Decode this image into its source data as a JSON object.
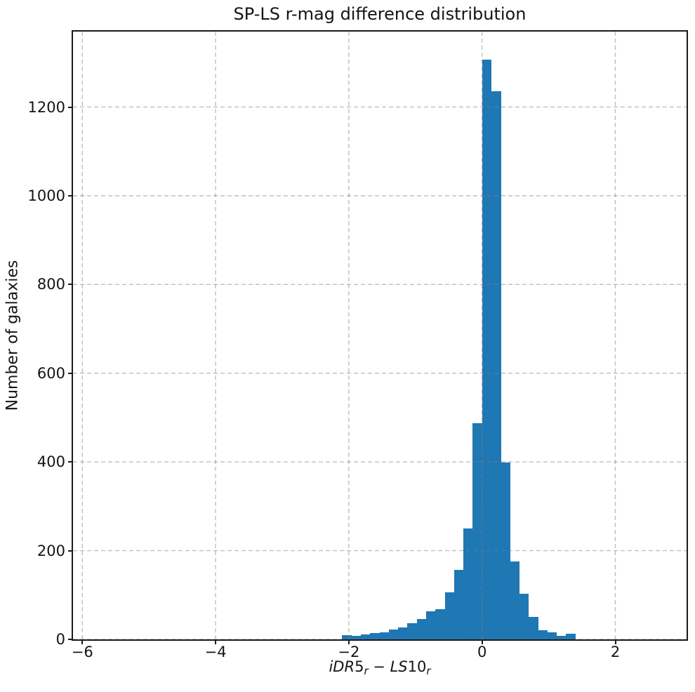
{
  "figure": {
    "background": "#ffffff",
    "frame_color": "#1a1a1a",
    "text_color": "#141414"
  },
  "chart_data": {
    "type": "bar",
    "subtype": "histogram",
    "title": "SP-LS r-mag difference distribution",
    "xlabel": "iDR5_r − LS10_r",
    "xlabel_parts": [
      {
        "text": "iDR",
        "italic": true,
        "sub": false
      },
      {
        "text": "5",
        "italic": false,
        "sub": false
      },
      {
        "text": "r",
        "italic": true,
        "sub": true
      },
      {
        "text": " − ",
        "italic": false,
        "sub": false
      },
      {
        "text": "LS",
        "italic": true,
        "sub": false
      },
      {
        "text": "10",
        "italic": false,
        "sub": false
      },
      {
        "text": "r",
        "italic": true,
        "sub": true
      }
    ],
    "ylabel": "Number of galaxies",
    "bar_color": "#1f77b4",
    "grid": {
      "visible": true,
      "style": "dashed",
      "color": "#808080",
      "opacity": 0.5,
      "over_bars": true
    },
    "xlim": [
      -6.14,
      3.07
    ],
    "ylim": [
      0,
      1370
    ],
    "xticks": [
      {
        "value": -6,
        "label": "−6"
      },
      {
        "value": -4,
        "label": "−4"
      },
      {
        "value": -2,
        "label": "−2"
      },
      {
        "value": 0,
        "label": "0"
      },
      {
        "value": 2,
        "label": "2"
      }
    ],
    "yticks": [
      {
        "value": 0,
        "label": "0"
      },
      {
        "value": 200,
        "label": "200"
      },
      {
        "value": 400,
        "label": "400"
      },
      {
        "value": 600,
        "label": "600"
      },
      {
        "value": 800,
        "label": "800"
      },
      {
        "value": 1000,
        "label": "1000"
      },
      {
        "value": 1200,
        "label": "1200"
      }
    ],
    "histogram": {
      "bin_start": -2.1,
      "bin_width": 0.14,
      "counts": [
        10,
        8,
        11,
        14,
        16,
        22,
        27,
        36,
        46,
        63,
        68,
        106,
        156,
        250,
        487,
        1306,
        1236,
        398,
        175,
        103,
        51,
        20,
        16,
        8,
        12
      ]
    }
  }
}
